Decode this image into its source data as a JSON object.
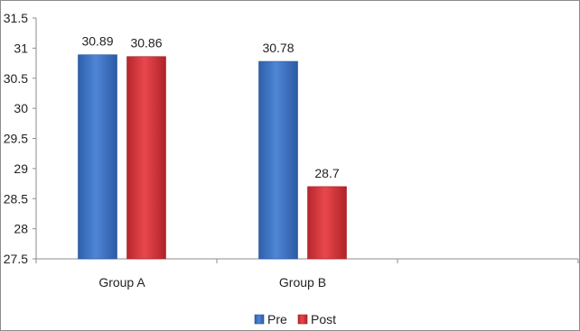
{
  "chart_data": {
    "type": "bar",
    "categories": [
      "Group A",
      "Group B"
    ],
    "series": [
      {
        "name": "Pre",
        "values": [
          30.89,
          30.78
        ],
        "labels": [
          "30.89",
          "30.78"
        ]
      },
      {
        "name": "Post",
        "values": [
          30.86,
          28.7
        ],
        "labels": [
          "30.86",
          "28.7"
        ]
      }
    ],
    "ylim": [
      27.5,
      31.5
    ],
    "yticks": [
      27.5,
      28,
      28.5,
      29,
      29.5,
      30,
      30.5,
      31,
      31.5
    ],
    "ytick_labels": [
      "27.5",
      "28",
      "28.5",
      "29",
      "29.5",
      "30",
      "30.5",
      "31",
      "31.5"
    ],
    "grid": false,
    "legend_position": "bottom",
    "colors": {
      "Pre": "#3f72c4",
      "Post": "#d9363c",
      "axis": "#8c8c8c"
    }
  }
}
